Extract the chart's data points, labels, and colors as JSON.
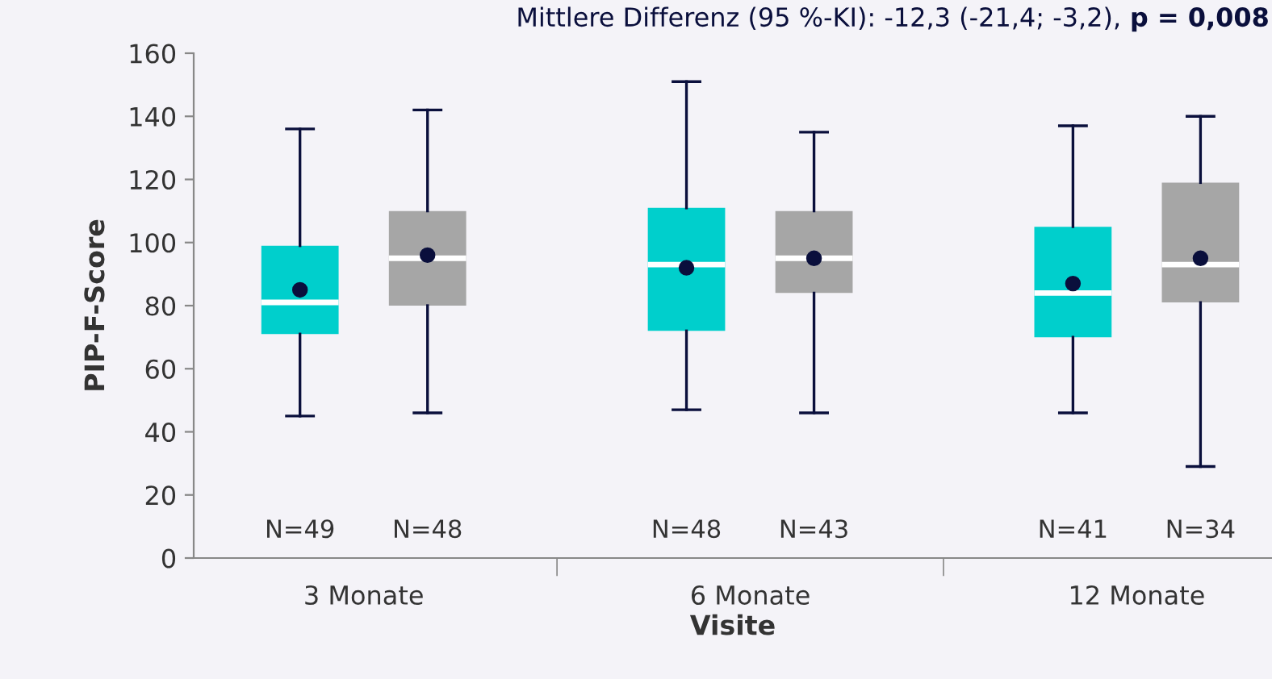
{
  "chart_data": {
    "type": "box",
    "title": "Mittlere Differenz (95 %-KI): -12,3 (-21,4; -3,2),",
    "annotations": [
      "p = 0,008"
    ],
    "xlabel": "Visite",
    "ylabel": "PIP-F-Score",
    "categories": [
      "3 Monate",
      "6 Monate",
      "12 Monate"
    ],
    "ylim": [
      0,
      160
    ],
    "yticks": [
      0,
      20,
      40,
      60,
      80,
      100,
      120,
      140,
      160
    ],
    "grid": false,
    "legend": false,
    "series": [
      {
        "color": "#00cfcc",
        "value_labels": [
          "N=49",
          "N=48",
          "N=41"
        ],
        "boxes": [
          {
            "low": 45,
            "q1": 71,
            "median": 81,
            "q3": 99,
            "high": 136,
            "mean": 85
          },
          {
            "low": 47,
            "q1": 72,
            "median": 93,
            "q3": 111,
            "high": 151,
            "mean": 92
          },
          {
            "low": 46,
            "q1": 70,
            "median": 84,
            "q3": 105,
            "high": 137,
            "mean": 87
          }
        ]
      },
      {
        "color": "#a6a6a6",
        "value_labels": [
          "N=48",
          "N=43",
          "N=34"
        ],
        "boxes": [
          {
            "low": 46,
            "q1": 80,
            "median": 95,
            "q3": 110,
            "high": 142,
            "mean": 96
          },
          {
            "low": 46,
            "q1": 84,
            "median": 95,
            "q3": 110,
            "high": 135,
            "mean": 95
          },
          {
            "low": 29,
            "q1": 81,
            "median": 93,
            "q3": 119,
            "high": 140,
            "mean": 95
          }
        ]
      }
    ]
  }
}
